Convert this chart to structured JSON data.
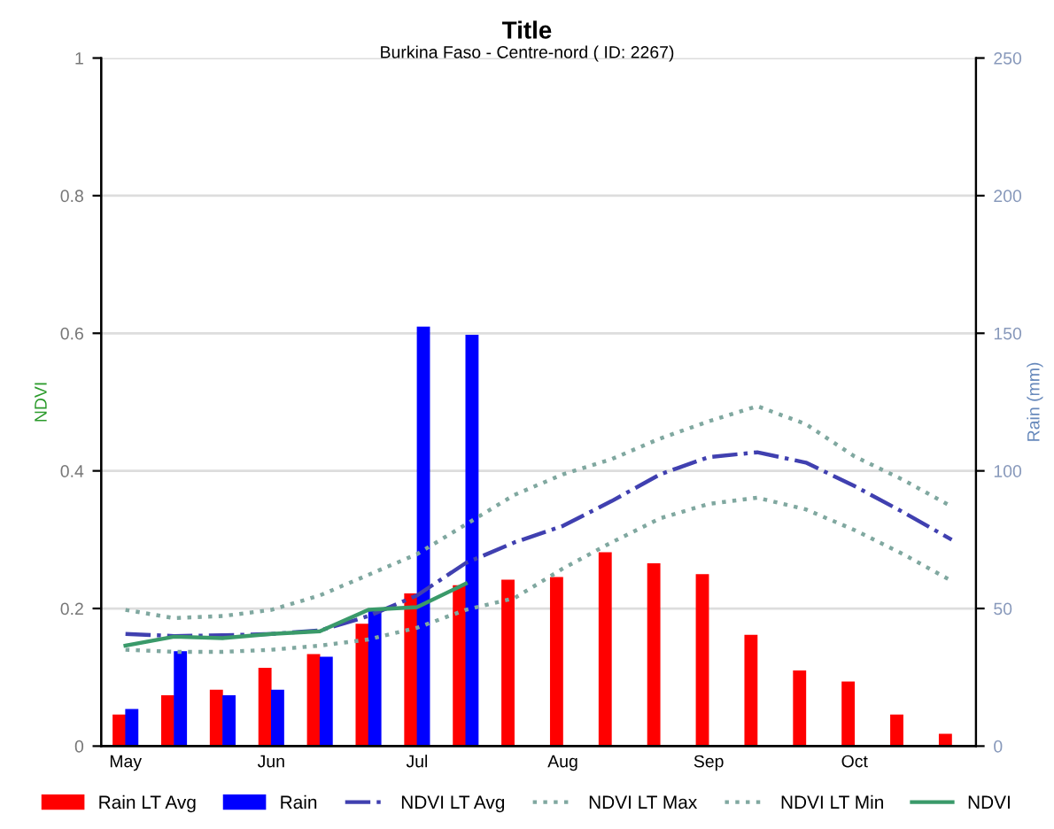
{
  "chart_data": {
    "type": "bar",
    "title": "Title",
    "subtitle": "Burkina Faso - Centre-nord ( ID: 2267)",
    "ylabel": "NDVI",
    "y2label": "Rain (mm)",
    "categories": [
      "May",
      null,
      null,
      "Jun",
      null,
      null,
      "Jul",
      null,
      null,
      "Aug",
      null,
      null,
      "Sep",
      null,
      null,
      "Oct",
      null,
      null
    ],
    "ylim": [
      0,
      1
    ],
    "yticks": [
      0,
      0.2,
      0.4,
      0.6,
      0.8,
      1
    ],
    "y2lim": [
      0,
      250
    ],
    "y2ticks": [
      0,
      50,
      100,
      150,
      200,
      250
    ],
    "grid": "y",
    "legend": "bottom",
    "series": [
      {
        "name": "Rain LT Avg",
        "axis": "y2",
        "color": "#ff0000",
        "values": [
          11,
          18,
          20,
          28,
          33,
          44,
          55,
          58,
          60,
          61,
          70,
          66,
          62,
          40,
          27,
          23,
          11,
          4
        ]
      },
      {
        "name": "Rain",
        "axis": "y2",
        "color": "#0000ff",
        "values": [
          13,
          34,
          18,
          20,
          32,
          49,
          152,
          149,
          null,
          null,
          null,
          null,
          null,
          null,
          null,
          null,
          null,
          null
        ]
      },
      {
        "name": "NDVI LT Avg",
        "type": "line",
        "line_style": "dashdot",
        "color": "#4040b0",
        "values": [
          0.163,
          0.16,
          0.161,
          0.163,
          0.168,
          0.189,
          0.219,
          0.266,
          0.296,
          0.32,
          0.356,
          0.395,
          0.42,
          0.427,
          0.412,
          0.378,
          0.34,
          0.3
        ]
      },
      {
        "name": "NDVI LT Max",
        "type": "line",
        "line_style": "dotted",
        "color": "#80a8a0",
        "values": [
          0.198,
          0.186,
          0.189,
          0.198,
          0.219,
          0.249,
          0.279,
          0.322,
          0.365,
          0.395,
          0.417,
          0.447,
          0.472,
          0.494,
          0.468,
          0.421,
          0.387,
          0.348
        ]
      },
      {
        "name": "NDVI LT Min",
        "type": "line",
        "line_style": "dotted",
        "color": "#80a8a0",
        "values": [
          0.14,
          0.137,
          0.137,
          0.14,
          0.146,
          0.155,
          0.172,
          0.198,
          0.215,
          0.258,
          0.296,
          0.331,
          0.352,
          0.361,
          0.344,
          0.314,
          0.279,
          0.24
        ]
      },
      {
        "name": "NDVI",
        "type": "line",
        "line_style": "solid",
        "color": "#3a9a6a",
        "values": [
          0.146,
          0.159,
          0.157,
          0.163,
          0.167,
          0.198,
          0.202,
          0.236,
          null,
          null,
          null,
          null,
          null,
          null,
          null,
          null,
          null,
          null
        ]
      }
    ]
  }
}
